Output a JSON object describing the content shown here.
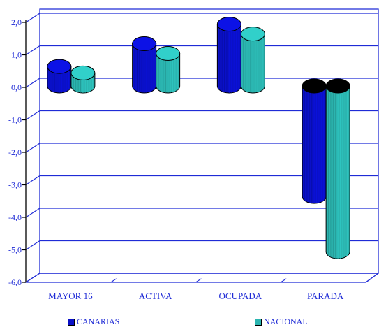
{
  "chart_data": {
    "type": "bar",
    "categories": [
      "MAYOR 16",
      "ACTIVA",
      "OCUPADA",
      "PARADA"
    ],
    "series": [
      {
        "name": "CANARIAS",
        "values": [
          0.6,
          1.3,
          1.9,
          -3.4
        ],
        "color": "#0a10c8",
        "top_color_negative": "#000000"
      },
      {
        "name": "NACIONAL",
        "values": [
          0.4,
          1.0,
          1.6,
          -5.1
        ],
        "color": "#2bb5b0",
        "top_color_negative": "#000000"
      }
    ],
    "ylim": [
      -6,
      2
    ],
    "yticks": [
      "2,0",
      "1,0",
      "0,0",
      "-1,0",
      "-2,0",
      "-3,0",
      "-4,0",
      "-5,0",
      "-6,0"
    ],
    "ytick_values": [
      2,
      1,
      0,
      -1,
      -2,
      -3,
      -4,
      -5,
      -6
    ],
    "grid": true,
    "legend_position": "bottom",
    "axis_color": "#1f2bd6"
  }
}
